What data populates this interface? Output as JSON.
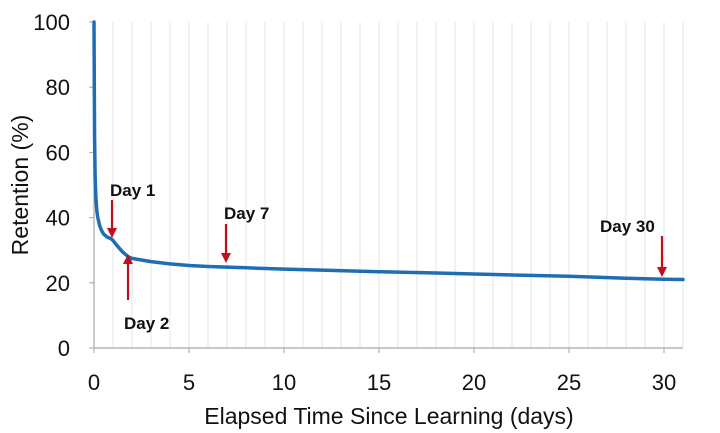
{
  "chart_data": {
    "type": "line",
    "title": "",
    "xlabel": "Elapsed Time Since Learning (days)",
    "ylabel": "Retention (%)",
    "xlim": [
      0,
      31
    ],
    "ylim": [
      0,
      100
    ],
    "x_ticks": [
      0,
      5,
      10,
      15,
      20,
      25,
      30
    ],
    "y_ticks": [
      0,
      20,
      40,
      60,
      80,
      100
    ],
    "grid": "vertical minor gridlines at every day",
    "legend": "none",
    "series": [
      {
        "color": "#1f6db3",
        "x": [
          0,
          0.01,
          0.03,
          0.06,
          0.1,
          0.15,
          0.2,
          0.3,
          0.4,
          0.5,
          0.7,
          0.9,
          1.0,
          1.2,
          1.5,
          1.8,
          2.0,
          2.5,
          3,
          4,
          5,
          6,
          7,
          8,
          10,
          12,
          15,
          18,
          20,
          22,
          25,
          28,
          30,
          31
        ],
        "y": [
          100,
          88,
          65,
          52,
          46,
          42,
          40,
          37.5,
          36,
          35,
          34,
          33.5,
          33,
          31.5,
          29.5,
          28,
          27.5,
          27,
          26.5,
          25.8,
          25.3,
          25,
          24.8,
          24.6,
          24.2,
          23.9,
          23.4,
          23,
          22.7,
          22.4,
          22,
          21.4,
          21.1,
          21
        ]
      }
    ],
    "annotations": [
      {
        "label": "Day 1",
        "x": 1,
        "y": 33
      },
      {
        "label": "Day 2",
        "x": 2,
        "y": 27.5
      },
      {
        "label": "Day 7",
        "x": 7,
        "y": 24.8
      },
      {
        "label": "Day 30",
        "x": 30,
        "y": 21.1
      }
    ],
    "annotation_color": "#c0101e"
  }
}
